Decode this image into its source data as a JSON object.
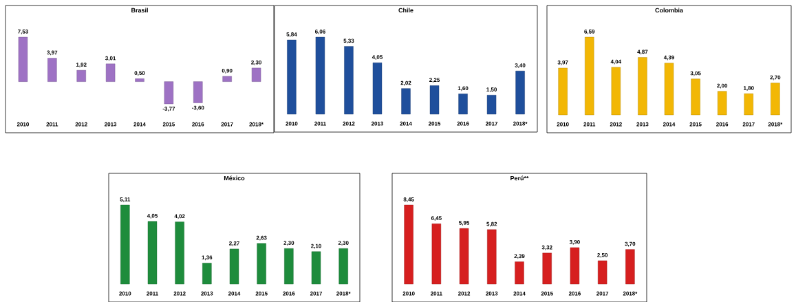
{
  "chart_data": [
    {
      "type": "bar",
      "title": "Brasil",
      "categories": [
        "2010",
        "2011",
        "2012",
        "2013",
        "2014",
        "2015",
        "2016",
        "2017",
        "2018*"
      ],
      "values": [
        7.53,
        3.97,
        1.92,
        3.01,
        0.5,
        -3.77,
        -3.6,
        0.9,
        2.3
      ],
      "value_labels": [
        "7,53",
        "3,97",
        "1,92",
        "3,01",
        "0,50",
        "-3,77",
        "-3,60",
        "0,90",
        "2,30"
      ],
      "color": "#9e72c4"
    },
    {
      "type": "bar",
      "title": "Chile",
      "categories": [
        "2010",
        "2011",
        "2012",
        "2013",
        "2014",
        "2015",
        "2016",
        "2017",
        "2018*"
      ],
      "values": [
        5.84,
        6.06,
        5.33,
        4.05,
        2.02,
        2.25,
        1.6,
        1.5,
        3.4
      ],
      "value_labels": [
        "5,84",
        "6,06",
        "5,33",
        "4,05",
        "2,02",
        "2,25",
        "1,60",
        "1,50",
        "3,40"
      ],
      "color": "#1f4f9c"
    },
    {
      "type": "bar",
      "title": "Colombia",
      "categories": [
        "2010",
        "2011",
        "2012",
        "2013",
        "2014",
        "2015",
        "2016",
        "2017",
        "2018*"
      ],
      "values": [
        3.97,
        6.59,
        4.04,
        4.87,
        4.39,
        3.05,
        2.0,
        1.8,
        2.7
      ],
      "value_labels": [
        "3,97",
        "6,59",
        "4,04",
        "4,87",
        "4,39",
        "3,05",
        "2,00",
        "1,80",
        "2,70"
      ],
      "color": "#f2b705"
    },
    {
      "type": "bar",
      "title": "México",
      "categories": [
        "2010",
        "2011",
        "2012",
        "2013",
        "2014",
        "2015",
        "2016",
        "2017",
        "2018*"
      ],
      "values": [
        5.11,
        4.05,
        4.02,
        1.36,
        2.27,
        2.63,
        2.3,
        2.1,
        2.3
      ],
      "value_labels": [
        "5,11",
        "4,05",
        "4,02",
        "1,36",
        "2,27",
        "2,63",
        "2,30",
        "2,10",
        "2,30"
      ],
      "color": "#1e8c3c"
    },
    {
      "type": "bar",
      "title": "Perú**",
      "categories": [
        "2010",
        "2011",
        "2012",
        "2013",
        "2014",
        "2015",
        "2016",
        "2017",
        "2018*"
      ],
      "values": [
        8.45,
        6.45,
        5.95,
        5.82,
        2.39,
        3.32,
        3.9,
        2.5,
        3.7
      ],
      "value_labels": [
        "8,45",
        "6,45",
        "5,95",
        "5,82",
        "2,39",
        "3,32",
        "3,90",
        "2,50",
        "3,70"
      ],
      "color": "#d61f1f"
    }
  ]
}
